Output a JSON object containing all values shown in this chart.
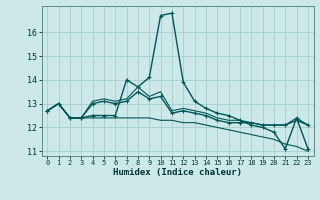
{
  "xlabel": "Humidex (Indice chaleur)",
  "bg_color": "#cce8e8",
  "grid_color": "#a8cccc",
  "line_color": "#005555",
  "xlim": [
    -0.5,
    23.5
  ],
  "ylim": [
    10.8,
    17.1
  ],
  "yticks": [
    11,
    12,
    13,
    14,
    15,
    16
  ],
  "xticks": [
    0,
    1,
    2,
    3,
    4,
    5,
    6,
    7,
    8,
    9,
    10,
    11,
    12,
    13,
    14,
    15,
    16,
    17,
    18,
    19,
    20,
    21,
    22,
    23
  ],
  "series": [
    {
      "y": [
        12.7,
        13.0,
        12.4,
        12.4,
        13.0,
        13.1,
        13.0,
        13.1,
        13.5,
        13.2,
        13.3,
        12.6,
        12.7,
        12.6,
        12.5,
        12.3,
        12.2,
        12.2,
        12.2,
        12.1,
        12.1,
        12.1,
        12.3,
        12.1
      ],
      "marker": true,
      "lw": 1.0
    },
    {
      "y": [
        12.7,
        13.0,
        12.4,
        12.4,
        12.5,
        12.5,
        12.5,
        14.0,
        13.7,
        14.1,
        16.7,
        16.8,
        13.9,
        13.1,
        12.8,
        12.6,
        12.5,
        12.3,
        12.1,
        12.0,
        11.8,
        11.1,
        12.4,
        11.1
      ],
      "marker": true,
      "lw": 1.0
    },
    {
      "y": [
        12.7,
        13.0,
        12.4,
        12.4,
        13.1,
        13.2,
        13.1,
        13.2,
        13.7,
        13.3,
        13.5,
        12.7,
        12.8,
        12.7,
        12.6,
        12.4,
        12.3,
        12.3,
        12.2,
        12.1,
        12.1,
        12.1,
        12.4,
        12.1
      ],
      "marker": false,
      "lw": 0.8
    },
    {
      "y": [
        12.7,
        13.0,
        12.4,
        12.4,
        12.4,
        12.4,
        12.4,
        12.4,
        12.4,
        12.4,
        12.3,
        12.3,
        12.2,
        12.2,
        12.1,
        12.0,
        11.9,
        11.8,
        11.7,
        11.6,
        11.5,
        11.3,
        11.2,
        11.0
      ],
      "marker": false,
      "lw": 0.8
    }
  ]
}
